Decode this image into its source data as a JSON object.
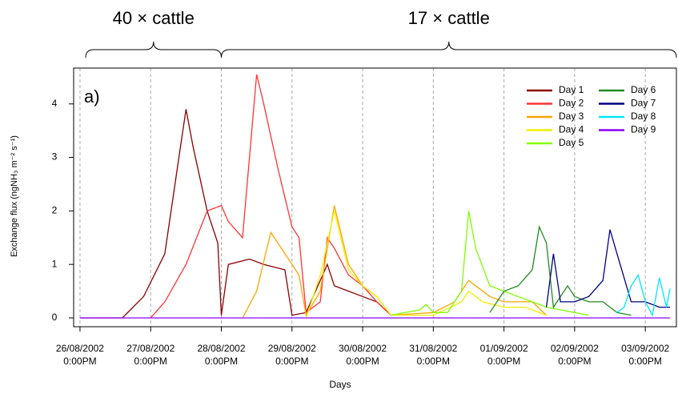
{
  "chart_data": {
    "type": "line",
    "panel_label": "a)",
    "x_label": "Days",
    "y_label": "Exchange flux (ngNH₃ m⁻² s⁻¹)",
    "xlim": [
      -0.09,
      8.44
    ],
    "ylim": [
      -0.165,
      4.67
    ],
    "xticks": [
      {
        "value": 0,
        "label": [
          "26/08/2002",
          "0:00PM"
        ]
      },
      {
        "value": 1,
        "label": [
          "27/08/2002",
          "0:00PM"
        ]
      },
      {
        "value": 2,
        "label": [
          "28/08/2002",
          "0:00PM"
        ]
      },
      {
        "value": 3,
        "label": [
          "29/08/2002",
          "0:00PM"
        ]
      },
      {
        "value": 4,
        "label": [
          "30/08/2002",
          "0:00PM"
        ]
      },
      {
        "value": 5,
        "label": [
          "31/08/2002",
          "0:00PM"
        ]
      },
      {
        "value": 6,
        "label": [
          "01/09/2002",
          "0:00PM"
        ]
      },
      {
        "value": 7,
        "label": [
          "02/09/2002",
          "0:00PM"
        ]
      },
      {
        "value": 8,
        "label": [
          "03/09/2002",
          "0:00PM"
        ]
      }
    ],
    "yticks": [
      0,
      1,
      2,
      3,
      4
    ],
    "grid": "vertical",
    "legend": "top-right",
    "annotations": [
      {
        "text": "40 × cattle",
        "x": [
          0.08,
          2.0
        ]
      },
      {
        "text": "17 × cattle",
        "x": [
          2.0,
          8.44
        ]
      }
    ],
    "series": [
      {
        "name": "Day 1",
        "color": "#8b0000",
        "x": [
          0,
          0.6,
          0.9,
          1.2,
          1.4,
          1.5,
          1.6,
          1.8,
          1.95,
          2.0,
          2.1,
          2.4,
          2.6,
          2.9,
          3.0,
          3.2,
          3.5,
          3.6,
          3.8,
          4.0,
          4.2,
          4.4
        ],
        "values": [
          0,
          0,
          0.4,
          1.2,
          3.0,
          3.9,
          3.2,
          2.0,
          1.4,
          0.05,
          1.0,
          1.1,
          1.0,
          0.9,
          0.05,
          0.1,
          1.0,
          0.6,
          0.5,
          0.4,
          0.3,
          0.05
        ]
      },
      {
        "name": "Day 2",
        "color": "#ff3333",
        "x": [
          1.0,
          1.2,
          1.5,
          1.8,
          2.0,
          2.1,
          2.3,
          2.5,
          2.6,
          2.8,
          3.0,
          3.1,
          3.2,
          3.4,
          3.5,
          3.6,
          3.8,
          4.0,
          4.2,
          4.4
        ],
        "values": [
          0,
          0.3,
          1.0,
          2.0,
          2.1,
          1.8,
          1.5,
          4.55,
          4.0,
          2.8,
          1.7,
          1.5,
          0.1,
          0.3,
          1.5,
          1.3,
          0.8,
          0.6,
          0.3,
          0.05
        ]
      },
      {
        "name": "Day 3",
        "color": "#ffa500",
        "x": [
          2.3,
          2.5,
          2.7,
          3.0,
          3.1,
          3.2,
          3.4,
          3.6,
          3.8,
          4.0,
          4.2,
          4.4,
          5.0,
          5.3,
          5.5,
          5.8,
          6.0,
          6.2,
          6.4,
          6.6
        ],
        "values": [
          0,
          0.5,
          1.6,
          1.0,
          0.8,
          0.05,
          0.5,
          2.1,
          1.0,
          0.6,
          0.4,
          0.05,
          0.1,
          0.3,
          0.7,
          0.4,
          0.3,
          0.3,
          0.3,
          0.05
        ]
      },
      {
        "name": "Day 4",
        "color": "#f0f000",
        "x": [
          3.2,
          3.4,
          3.6,
          3.8,
          4.0,
          4.2,
          4.4,
          5.0,
          5.4,
          5.5,
          5.7,
          6.0,
          6.3,
          6.6
        ],
        "values": [
          0,
          0.8,
          2.0,
          0.9,
          0.6,
          0.4,
          0.05,
          0.05,
          0.3,
          0.5,
          0.3,
          0.2,
          0.2,
          0.05
        ]
      },
      {
        "name": "Day 5",
        "color": "#80ff00",
        "x": [
          4.4,
          4.6,
          4.8,
          4.9,
          5.0,
          5.2,
          5.4,
          5.5,
          5.6,
          5.8,
          6.0,
          6.2,
          6.4,
          6.6,
          7.0,
          7.2
        ],
        "values": [
          0.05,
          0.1,
          0.15,
          0.25,
          0.1,
          0.1,
          0.5,
          2.0,
          1.3,
          0.6,
          0.5,
          0.4,
          0.3,
          0.2,
          0.1,
          0.05
        ]
      },
      {
        "name": "Day 6",
        "color": "#228b22",
        "x": [
          5.8,
          6.0,
          6.2,
          6.4,
          6.5,
          6.6,
          6.7,
          6.9,
          7.0,
          7.2,
          7.4,
          7.6,
          7.8
        ],
        "values": [
          0.1,
          0.5,
          0.6,
          0.9,
          1.7,
          1.4,
          0.2,
          0.6,
          0.4,
          0.3,
          0.3,
          0.1,
          0.05
        ]
      },
      {
        "name": "Day 7",
        "color": "#000080",
        "x": [
          6.6,
          6.7,
          6.8,
          7.0,
          7.2,
          7.4,
          7.5,
          7.6,
          7.8,
          8.0,
          8.2,
          8.35
        ],
        "values": [
          0.2,
          1.2,
          0.3,
          0.3,
          0.4,
          0.7,
          1.65,
          1.2,
          0.3,
          0.3,
          0.2,
          0.2
        ]
      },
      {
        "name": "Day 8",
        "color": "#00e5ff",
        "x": [
          7.6,
          7.7,
          7.8,
          7.9,
          8.0,
          8.1,
          8.2,
          8.3,
          8.35
        ],
        "values": [
          0.1,
          0.2,
          0.6,
          0.8,
          0.3,
          0.05,
          0.75,
          0.2,
          0.55
        ]
      },
      {
        "name": "Day 9",
        "color": "#8b00ff",
        "x": [
          0,
          1.0,
          2.0,
          3.0,
          4.0,
          5.0,
          6.0,
          7.0,
          8.0,
          8.35
        ],
        "values": [
          0,
          0,
          0,
          0,
          0,
          0,
          0,
          0,
          0,
          0
        ]
      }
    ]
  }
}
